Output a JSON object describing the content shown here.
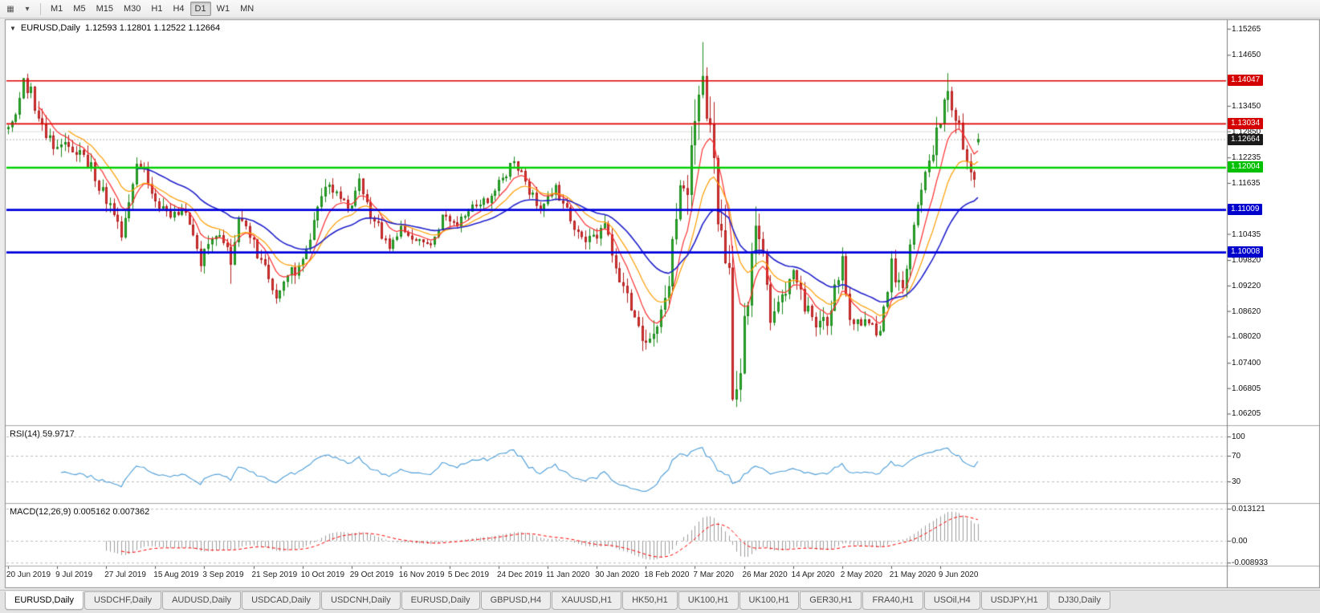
{
  "toolbar": {
    "chart_button_glyph": "▦",
    "dropdown_glyph": "▾",
    "timeframes": [
      "M1",
      "M5",
      "M15",
      "M30",
      "H1",
      "H4",
      "D1",
      "W1",
      "MN"
    ],
    "active_timeframe": "D1"
  },
  "chart": {
    "collapse_glyph": "▼",
    "symbol_title": "EURUSD,Daily",
    "ohlc_text": "1.12593 1.12801 1.12522 1.12664"
  },
  "indicators": {
    "rsi": {
      "label": "RSI(14) 59.9717",
      "period": 14,
      "color": "#4d9ed8",
      "levels": [
        100,
        70,
        30
      ]
    },
    "macd": {
      "label": "MACD(12,26,9) 0.005162 0.007362",
      "fast": 12,
      "slow": 26,
      "signal": 9,
      "hist_color": "#9e9e9e",
      "signal_color": "#ff0000",
      "levels": [
        {
          "text": "0.013121",
          "value": 0.013121
        },
        {
          "text": "0.00",
          "value": 0
        },
        {
          "text": "-0.008933",
          "value": -0.008933
        }
      ]
    }
  },
  "chart_data": {
    "type": "candlestick",
    "title": "EURUSD,Daily",
    "symbol": "EURUSD",
    "timeframe": "Daily",
    "current_ohlc": {
      "open": 1.12593,
      "high": 1.12801,
      "low": 1.12522,
      "close": 1.12664
    },
    "price_range": {
      "top": 1.1545,
      "bottom": 1.0595
    },
    "price_ticks": [
      1.15265,
      1.1465,
      1.1345,
      1.1285,
      1.12235,
      1.11635,
      1.10435,
      1.0982,
      1.0922,
      1.0862,
      1.0802,
      1.074,
      1.06805,
      1.06205
    ],
    "line_labels": [
      {
        "text": "1.14047",
        "price": 1.14047,
        "bg": "#d40000"
      },
      {
        "text": "1.13034",
        "price": 1.13034,
        "bg": "#d40000"
      },
      {
        "text": "1.12664",
        "price": 1.12664,
        "bg": "#1a1a1a"
      },
      {
        "text": "1.12004",
        "price": 1.12004,
        "bg": "#00c000"
      },
      {
        "text": "1.11009",
        "price": 1.11009,
        "bg": "#0000cc"
      },
      {
        "text": "1.10008",
        "price": 1.10008,
        "bg": "#0000cc"
      }
    ],
    "hlines": [
      {
        "price": 1.1285,
        "color": "#dcdcdc",
        "width": 1,
        "dash": null,
        "layer": "under"
      },
      {
        "price": 1.12664,
        "color": "#b4b4b4",
        "width": 1,
        "dash": [
          2,
          2
        ],
        "layer": "under"
      },
      {
        "price": 1.14047,
        "color": "#e00000",
        "width": 1.6,
        "dash": null,
        "layer": "over"
      },
      {
        "price": 1.13034,
        "color": "#e00000",
        "width": 1.6,
        "dash": null,
        "layer": "over"
      },
      {
        "price": 1.12004,
        "color": "#00d000",
        "width": 2.6,
        "dash": null,
        "layer": "over"
      },
      {
        "price": 1.11009,
        "color": "#0000dd",
        "width": 2.6,
        "dash": null,
        "layer": "over"
      },
      {
        "price": 1.10008,
        "color": "#0000dd",
        "width": 2.6,
        "dash": null,
        "layer": "over"
      }
    ],
    "x_labels": [
      "20 Jun 2019",
      "9 Jul 2019",
      "27 Jul 2019",
      "15 Aug 2019",
      "3 Sep 2019",
      "21 Sep 2019",
      "10 Oct 2019",
      "29 Oct 2019",
      "16 Nov 2019",
      "5 Dec 2019",
      "24 Dec 2019",
      "11 Jan 2020",
      "30 Jan 2020",
      "18 Feb 2020",
      "7 Mar 2020",
      "26 Mar 2020",
      "14 Apr 2020",
      "2 May 2020",
      "21 May 2020",
      "9 Jun 2020"
    ],
    "bars_per_x_label": 13,
    "num_candles": 258,
    "candle_up": {
      "fill": "#2fae2f",
      "stroke": "#1d8a1d"
    },
    "candle_down": {
      "fill": "#e03a3a",
      "stroke": "#b22020"
    },
    "anchors": [
      [
        0,
        1.129
      ],
      [
        2,
        1.134
      ],
      [
        4,
        1.139
      ],
      [
        6,
        1.1372
      ],
      [
        9,
        1.13
      ],
      [
        13,
        1.1235
      ],
      [
        15,
        1.1268
      ],
      [
        18,
        1.124
      ],
      [
        22,
        1.12
      ],
      [
        26,
        1.1128
      ],
      [
        29,
        1.107
      ],
      [
        30,
        1.1045
      ],
      [
        32,
        1.112
      ],
      [
        34,
        1.12
      ],
      [
        37,
        1.117
      ],
      [
        39,
        1.1112
      ],
      [
        43,
        1.1088
      ],
      [
        47,
        1.1092
      ],
      [
        51,
        1.0975
      ],
      [
        54,
        1.1038
      ],
      [
        58,
        1.1012
      ],
      [
        59,
        1.0988
      ],
      [
        61,
        1.107
      ],
      [
        65,
        1.1018
      ],
      [
        69,
        1.094
      ],
      [
        71,
        1.09
      ],
      [
        76,
        1.0962
      ],
      [
        80,
        1.103
      ],
      [
        84,
        1.1165
      ],
      [
        88,
        1.113
      ],
      [
        91,
        1.1112
      ],
      [
        93,
        1.116
      ],
      [
        97,
        1.1072
      ],
      [
        101,
        1.1012
      ],
      [
        104,
        1.1052
      ],
      [
        108,
        1.1022
      ],
      [
        112,
        1.1012
      ],
      [
        115,
        1.108
      ],
      [
        119,
        1.1068
      ],
      [
        123,
        1.1118
      ],
      [
        127,
        1.1122
      ],
      [
        131,
        1.1172
      ],
      [
        134,
        1.1218
      ],
      [
        137,
        1.1162
      ],
      [
        141,
        1.1108
      ],
      [
        145,
        1.1148
      ],
      [
        149,
        1.1082
      ],
      [
        153,
        1.1022
      ],
      [
        156,
        1.1032
      ],
      [
        158,
        1.1058
      ],
      [
        162,
        1.0948
      ],
      [
        166,
        1.0842
      ],
      [
        169,
        1.0792
      ],
      [
        171,
        1.0788
      ],
      [
        174,
        1.088
      ],
      [
        176,
        1.1
      ],
      [
        178,
        1.1132
      ],
      [
        180,
        1.1138
      ],
      [
        182,
        1.1288
      ],
      [
        184,
        1.1442
      ],
      [
        185,
        1.1282
      ],
      [
        186,
        1.1272
      ],
      [
        188,
        1.1112
      ],
      [
        190,
        1.0998
      ],
      [
        191,
        1.092
      ],
      [
        192,
        1.0692
      ],
      [
        194,
        1.0732
      ],
      [
        196,
        1.0882
      ],
      [
        198,
        1.1088
      ],
      [
        200,
        1.1032
      ],
      [
        202,
        1.0862
      ],
      [
        205,
        1.0892
      ],
      [
        208,
        1.0978
      ],
      [
        211,
        1.0872
      ],
      [
        214,
        1.0822
      ],
      [
        217,
        1.0832
      ],
      [
        220,
        1.0952
      ],
      [
        221,
        1.0978
      ],
      [
        223,
        1.0842
      ],
      [
        226,
        1.0842
      ],
      [
        229,
        1.0816
      ],
      [
        231,
        1.0822
      ],
      [
        234,
        1.0972
      ],
      [
        237,
        1.0902
      ],
      [
        240,
        1.1078
      ],
      [
        243,
        1.1168
      ],
      [
        246,
        1.129
      ],
      [
        249,
        1.1378
      ],
      [
        251,
        1.1302
      ],
      [
        253,
        1.1262
      ],
      [
        255,
        1.1206
      ],
      [
        256,
        1.1186
      ],
      [
        257,
        1.12664
      ]
    ],
    "vol_anchors": [
      [
        0,
        0.005
      ],
      [
        20,
        0.0042
      ],
      [
        40,
        0.0038
      ],
      [
        70,
        0.004
      ],
      [
        100,
        0.003
      ],
      [
        130,
        0.0026
      ],
      [
        150,
        0.003
      ],
      [
        163,
        0.0045
      ],
      [
        175,
        0.0065
      ],
      [
        183,
        0.01
      ],
      [
        190,
        0.0115
      ],
      [
        196,
        0.0095
      ],
      [
        203,
        0.006
      ],
      [
        210,
        0.0048
      ],
      [
        225,
        0.004
      ],
      [
        240,
        0.0045
      ],
      [
        250,
        0.0058
      ],
      [
        257,
        0.0042
      ]
    ],
    "overrides": [
      {
        "i": 4,
        "high": 1.1405
      },
      {
        "i": 30,
        "low": 1.1027
      },
      {
        "i": 59,
        "low": 1.0926
      },
      {
        "i": 71,
        "low": 1.0879
      },
      {
        "i": 171,
        "low": 1.0778
      },
      {
        "i": 184,
        "high": 1.1495
      },
      {
        "i": 192,
        "low": 1.065
      },
      {
        "i": 193,
        "low": 1.0636
      },
      {
        "i": 249,
        "high": 1.1422
      },
      {
        "i": 257,
        "open": 1.12593,
        "high": 1.12801,
        "low": 1.12522,
        "close": 1.12664
      }
    ],
    "moving_averages": [
      {
        "period": 8,
        "color": "#ff2f2f",
        "width": 1.2
      },
      {
        "period": 16,
        "color": "#ff9d00",
        "width": 1.2
      },
      {
        "period": 34,
        "color": "#2222cc",
        "width": 1.6
      }
    ]
  },
  "tabs": [
    "EURUSD,Daily",
    "USDCHF,Daily",
    "AUDUSD,Daily",
    "USDCAD,Daily",
    "USDCNH,Daily",
    "EURUSD,Daily",
    "GBPUSD,H4",
    "XAUUSD,H1",
    "HK50,H1",
    "UK100,H1",
    "UK100,H1",
    "GER30,H1",
    "FRA40,H1",
    "USOil,H4",
    "USDJPY,H1",
    "DJ30,Daily"
  ],
  "active_tab_index": 0
}
